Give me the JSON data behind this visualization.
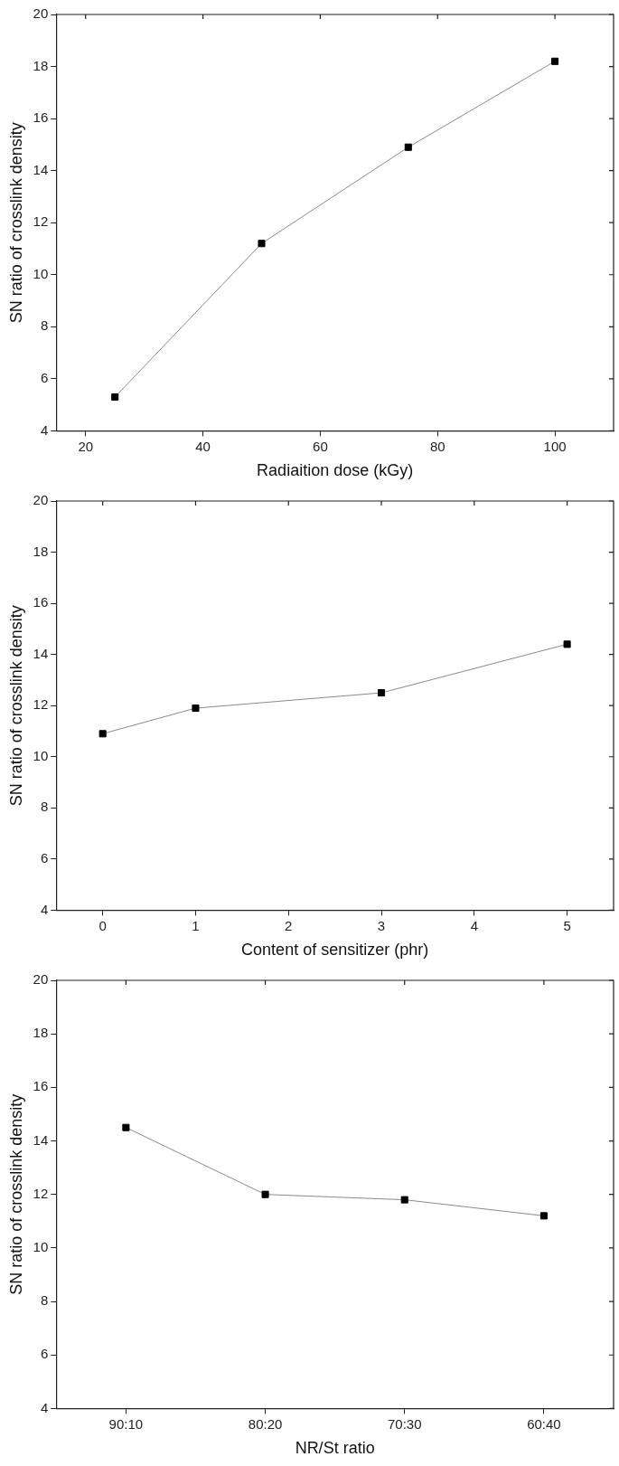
{
  "chart_data": [
    {
      "type": "line",
      "xlabel": "Radiaition dose (kGy)",
      "ylabel": "SN ratio of crosslink density",
      "x": [
        25,
        50,
        75,
        100
      ],
      "series": [
        {
          "color": "#000000",
          "values": [
            5.3,
            11.2,
            14.9,
            18.2
          ]
        }
      ],
      "xlim": [
        15,
        110
      ],
      "xticks": [
        20,
        40,
        60,
        80,
        100
      ],
      "ylim": [
        4,
        20
      ],
      "yticks": [
        4,
        6,
        8,
        10,
        12,
        14,
        16,
        18,
        20
      ],
      "grid": false,
      "legend": false,
      "marker": "square",
      "line_style": "solid"
    },
    {
      "type": "line",
      "xlabel": "Content of sensitizer (phr)",
      "ylabel": "SN ratio of crosslink density",
      "x": [
        0,
        1,
        3,
        5
      ],
      "series": [
        {
          "color": "#000000",
          "values": [
            10.9,
            11.9,
            12.5,
            14.4
          ]
        }
      ],
      "xlim": [
        -0.5,
        5.5
      ],
      "xticks": [
        0,
        1,
        2,
        3,
        4,
        5
      ],
      "ylim": [
        4,
        20
      ],
      "yticks": [
        4,
        6,
        8,
        10,
        12,
        14,
        16,
        18,
        20
      ],
      "grid": false,
      "legend": false,
      "marker": "square",
      "line_style": "solid"
    },
    {
      "type": "line",
      "xlabel": "NR/St ratio",
      "ylabel": "SN ratio of crosslink density",
      "categories": [
        "90:10",
        "80:20",
        "70:30",
        "60:40"
      ],
      "series": [
        {
          "color": "#000000",
          "values": [
            14.5,
            12.0,
            11.8,
            11.2
          ]
        }
      ],
      "ylim": [
        4,
        20
      ],
      "yticks": [
        4,
        6,
        8,
        10,
        12,
        14,
        16,
        18,
        20
      ],
      "grid": false,
      "legend": false,
      "marker": "square",
      "line_style": "solid"
    }
  ]
}
